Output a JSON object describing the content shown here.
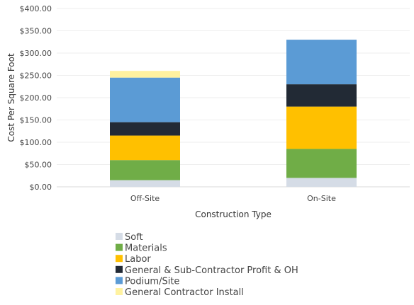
{
  "chart_data": {
    "type": "bar",
    "stacked": true,
    "categories": [
      "Off-Site",
      "On-Site"
    ],
    "series": [
      {
        "name": "Soft",
        "values": [
          15,
          20
        ],
        "color": "#d5dce6"
      },
      {
        "name": "Materials",
        "values": [
          45,
          65
        ],
        "color": "#70ad47"
      },
      {
        "name": "Labor",
        "values": [
          55,
          95
        ],
        "color": "#ffc000"
      },
      {
        "name": "General & Sub-Contractor Profit & OH",
        "values": [
          30,
          50
        ],
        "color": "#222a35"
      },
      {
        "name": "Podium/Site",
        "values": [
          100,
          100
        ],
        "color": "#5b9bd5"
      },
      {
        "name": "General Contractor Install",
        "values": [
          15,
          0
        ],
        "color": "#fff2a0"
      }
    ],
    "y_ticks": [
      "$0.00",
      "$50.00",
      "$100.00",
      "$150.00",
      "$200.00",
      "$250.00",
      "$300.00",
      "$350.00",
      "$400.00"
    ],
    "ylim": [
      0,
      400
    ],
    "xlabel": "Construction Type",
    "ylabel": "Cost Per Square Foot",
    "grid": true,
    "legend_position": "bottom"
  }
}
